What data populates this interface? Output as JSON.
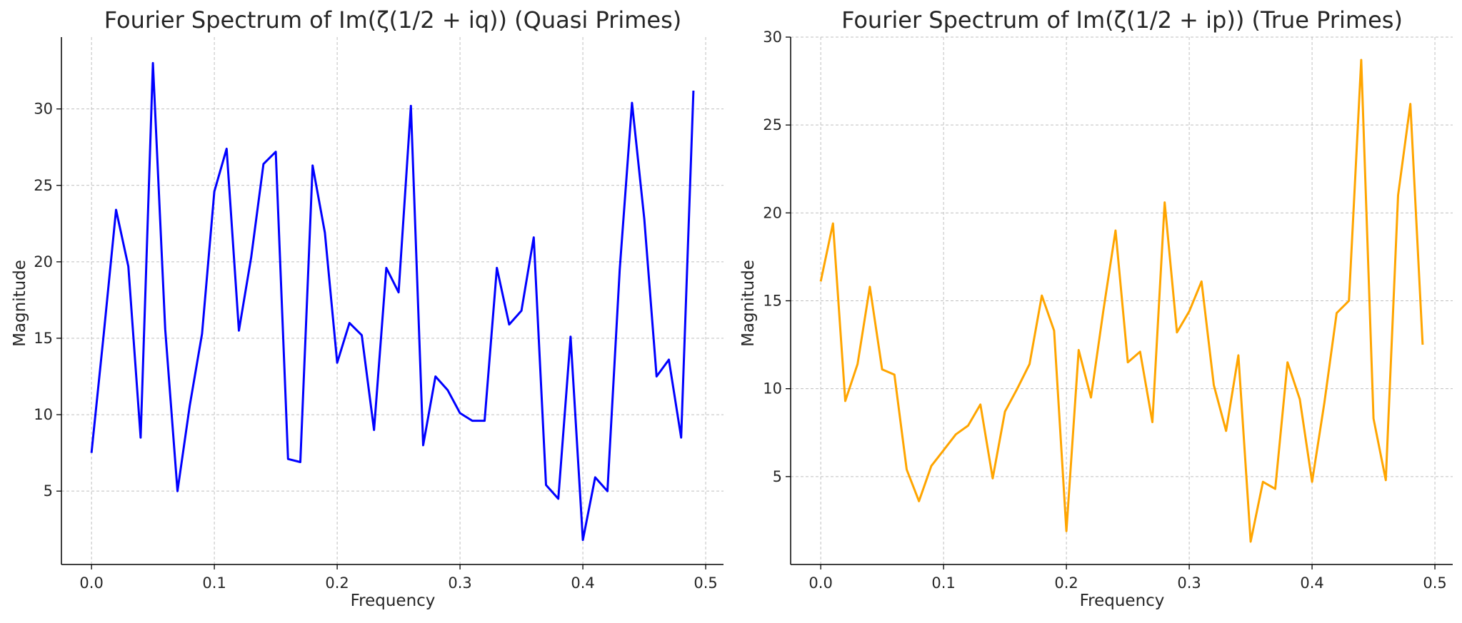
{
  "chart_data": [
    {
      "type": "line",
      "title": "Fourier Spectrum of Im(ζ(1/2 + iq)) (Quasi Primes)",
      "xlabel": "Frequency",
      "ylabel": "Magnitude",
      "xlim": [
        -0.0245,
        0.5145
      ],
      "ylim": [
        0.2,
        34.7
      ],
      "xticks": [
        0.0,
        0.1,
        0.2,
        0.3,
        0.4,
        0.5
      ],
      "xtick_labels": [
        "0.0",
        "0.1",
        "0.2",
        "0.3",
        "0.4",
        "0.5"
      ],
      "yticks": [
        5,
        10,
        15,
        20,
        25,
        30
      ],
      "ytick_labels": [
        "5",
        "10",
        "15",
        "20",
        "25",
        "30"
      ],
      "grid": true,
      "color": "#0000ff",
      "x": [
        0.0,
        0.01,
        0.02,
        0.03,
        0.04,
        0.05,
        0.06,
        0.07,
        0.08,
        0.09,
        0.1,
        0.11,
        0.12,
        0.13,
        0.14,
        0.15,
        0.16,
        0.17,
        0.18,
        0.19,
        0.2,
        0.21,
        0.22,
        0.23,
        0.24,
        0.25,
        0.26,
        0.27,
        0.28,
        0.29,
        0.3,
        0.31,
        0.32,
        0.33,
        0.34,
        0.35,
        0.36,
        0.37,
        0.38,
        0.39,
        0.4,
        0.41,
        0.42,
        0.43,
        0.44,
        0.45,
        0.46,
        0.47,
        0.48,
        0.49
      ],
      "y": [
        7.5,
        15.3,
        23.4,
        19.7,
        8.5,
        33.0,
        15.6,
        5.0,
        10.6,
        15.3,
        24.6,
        27.4,
        15.5,
        20.3,
        26.4,
        27.2,
        7.1,
        6.9,
        26.3,
        21.9,
        13.4,
        16.0,
        15.2,
        9.0,
        19.6,
        18.0,
        30.2,
        8.0,
        12.5,
        11.6,
        10.1,
        9.6,
        9.6,
        19.6,
        15.9,
        16.8,
        21.6,
        5.4,
        4.5,
        15.1,
        1.8,
        5.9,
        5.0,
        19.5,
        30.4,
        22.8,
        12.5,
        13.6,
        8.5,
        31.2
      ]
    },
    {
      "type": "line",
      "title": "Fourier Spectrum of Im(ζ(1/2 + ip)) (True Primes)",
      "xlabel": "Frequency",
      "ylabel": "Magnitude",
      "xlim": [
        -0.0245,
        0.5145
      ],
      "ylim": [
        0.0,
        30.0
      ],
      "xticks": [
        0.0,
        0.1,
        0.2,
        0.3,
        0.4,
        0.5
      ],
      "xtick_labels": [
        "0.0",
        "0.1",
        "0.2",
        "0.3",
        "0.4",
        "0.5"
      ],
      "yticks": [
        5,
        10,
        15,
        20,
        25,
        30
      ],
      "ytick_labels": [
        "5",
        "10",
        "15",
        "20",
        "25",
        "30"
      ],
      "grid": true,
      "color": "#ffa500",
      "x": [
        0.0,
        0.01,
        0.02,
        0.03,
        0.04,
        0.05,
        0.06,
        0.07,
        0.08,
        0.09,
        0.1,
        0.11,
        0.12,
        0.13,
        0.14,
        0.15,
        0.16,
        0.17,
        0.18,
        0.19,
        0.2,
        0.21,
        0.22,
        0.23,
        0.24,
        0.25,
        0.26,
        0.27,
        0.28,
        0.29,
        0.3,
        0.31,
        0.32,
        0.33,
        0.34,
        0.35,
        0.36,
        0.37,
        0.38,
        0.39,
        0.4,
        0.41,
        0.42,
        0.43,
        0.44,
        0.45,
        0.46,
        0.47,
        0.48,
        0.49
      ],
      "y": [
        16.1,
        19.4,
        9.3,
        11.4,
        15.8,
        11.1,
        10.8,
        5.4,
        3.6,
        5.6,
        6.5,
        7.4,
        7.9,
        9.1,
        4.9,
        8.7,
        10.0,
        11.4,
        15.3,
        13.3,
        1.9,
        12.2,
        9.5,
        14.4,
        19.0,
        11.5,
        12.1,
        8.1,
        20.6,
        13.2,
        14.4,
        16.1,
        10.2,
        7.6,
        11.9,
        1.3,
        4.7,
        4.3,
        11.5,
        9.4,
        4.7,
        9.2,
        14.3,
        15.0,
        28.7,
        8.3,
        4.8,
        21.0,
        26.2,
        12.5
      ]
    }
  ]
}
